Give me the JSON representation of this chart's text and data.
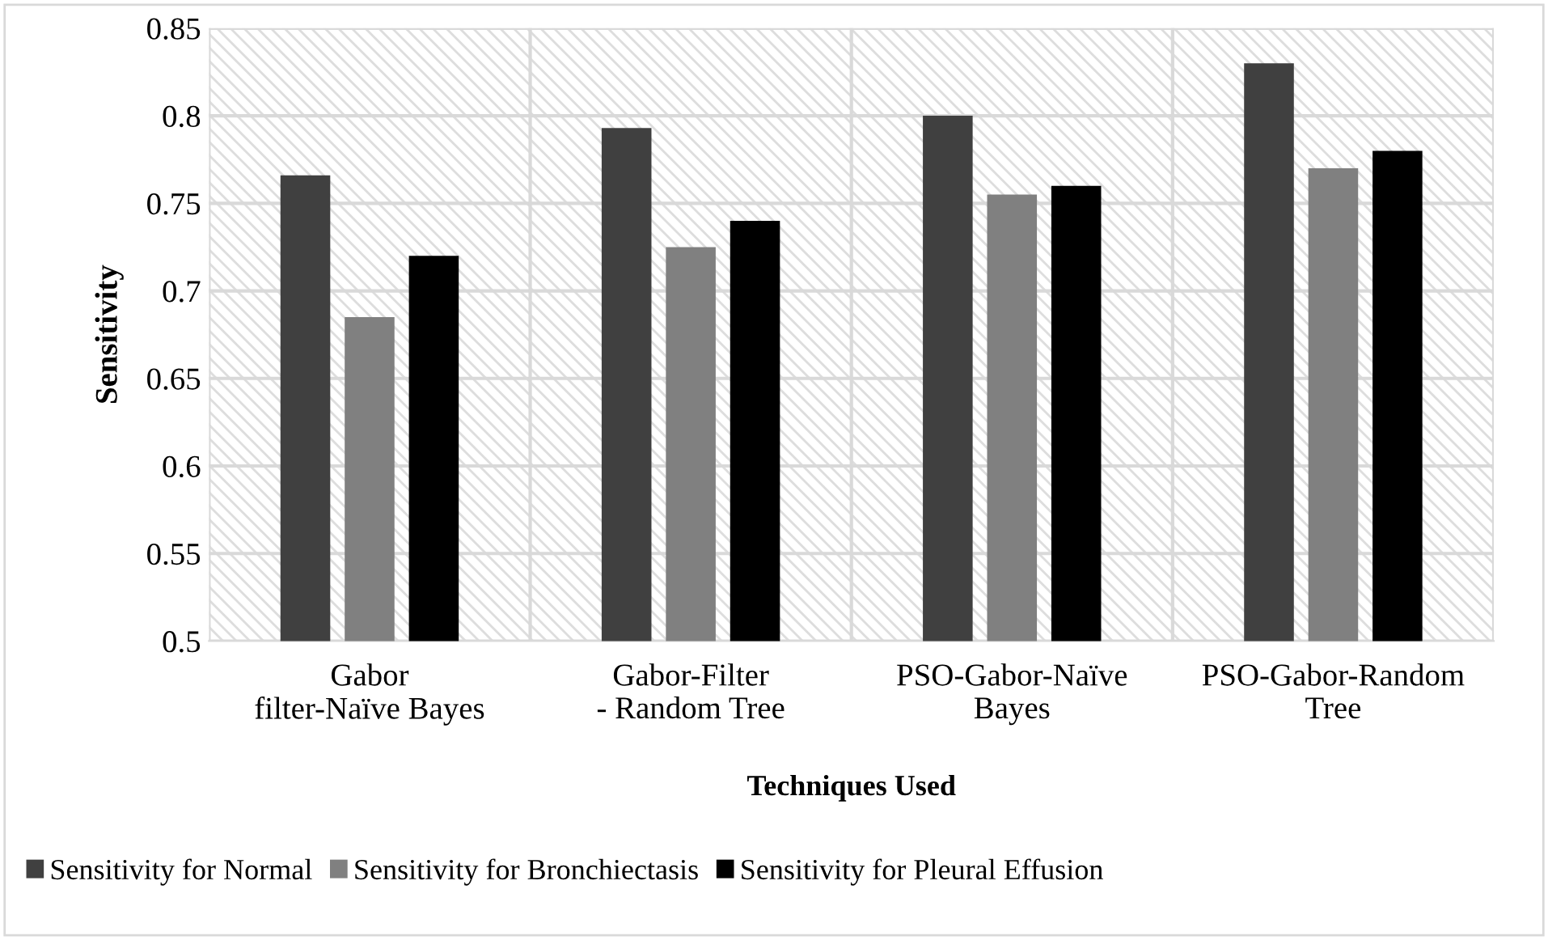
{
  "chart_data": {
    "type": "bar",
    "xlabel": "Techniques Used",
    "ylabel": "Sensitivity",
    "categories": [
      "Gabor filter-Naïve Bayes",
      "Gabor-Filter - Random Tree",
      "PSO-Gabor-Naïve Bayes",
      "PSO-Gabor-Random Tree"
    ],
    "series": [
      {
        "name": "Sensitivity for Normal",
        "color": "#404040",
        "values": [
          0.766,
          0.793,
          0.8,
          0.83
        ]
      },
      {
        "name": "Sensitivity for Bronchiectasis",
        "color": "#808080",
        "values": [
          0.685,
          0.725,
          0.755,
          0.77
        ]
      },
      {
        "name": "Sensitivity for Pleural Effusion",
        "color": "#000000",
        "values": [
          0.72,
          0.74,
          0.76,
          0.78
        ]
      }
    ],
    "ylim": [
      0.5,
      0.85
    ],
    "yticks": [
      0.5,
      0.55,
      0.6,
      0.65,
      0.7,
      0.75,
      0.8,
      0.85
    ],
    "grid": true,
    "legend": "bottom"
  }
}
